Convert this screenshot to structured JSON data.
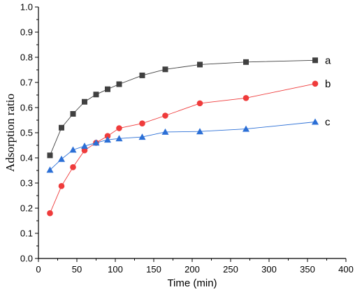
{
  "chart_data": {
    "type": "line",
    "xlabel": "Time (min)",
    "ylabel": "Adsorption ratio",
    "xlim": [
      0,
      400
    ],
    "ylim": [
      0.0,
      1.0
    ],
    "xticks": [
      0,
      50,
      100,
      150,
      200,
      250,
      300,
      350,
      400
    ],
    "yticks": [
      0.0,
      0.1,
      0.2,
      0.3,
      0.4,
      0.5,
      0.6,
      0.7,
      0.8,
      0.9,
      1.0
    ],
    "grid": false,
    "series": [
      {
        "name": "a",
        "marker": "square",
        "color": "#404040",
        "x": [
          15,
          30,
          45,
          60,
          75,
          90,
          105,
          135,
          165,
          210,
          270,
          360
        ],
        "y": [
          0.41,
          0.52,
          0.575,
          0.623,
          0.652,
          0.673,
          0.693,
          0.728,
          0.752,
          0.771,
          0.781,
          0.788
        ]
      },
      {
        "name": "b",
        "marker": "circle",
        "color": "#ef3b3b",
        "x": [
          15,
          30,
          45,
          60,
          75,
          90,
          105,
          135,
          165,
          210,
          270,
          360
        ],
        "y": [
          0.18,
          0.288,
          0.363,
          0.43,
          0.46,
          0.487,
          0.518,
          0.537,
          0.568,
          0.617,
          0.638,
          0.695
        ]
      },
      {
        "name": "c",
        "marker": "triangle",
        "color": "#2b6fd6",
        "x": [
          15,
          30,
          45,
          60,
          75,
          90,
          105,
          135,
          165,
          210,
          270,
          360
        ],
        "y": [
          0.352,
          0.395,
          0.432,
          0.447,
          0.46,
          0.472,
          0.477,
          0.483,
          0.503,
          0.505,
          0.515,
          0.543
        ]
      }
    ]
  }
}
